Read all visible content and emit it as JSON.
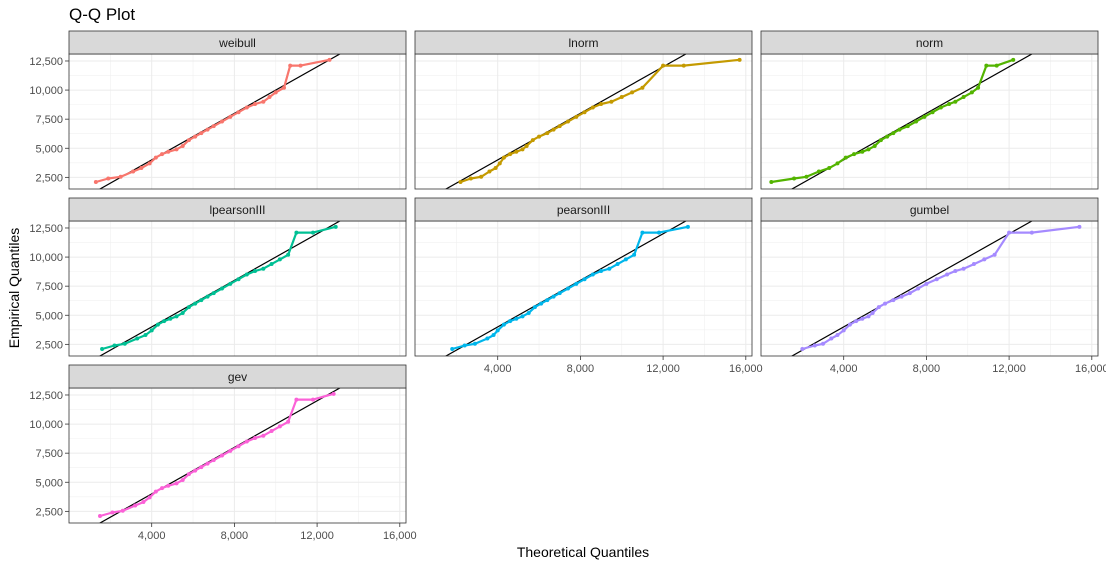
{
  "chart_data": {
    "type": "line",
    "title": "Q-Q Plot",
    "xlabel": "Theoretical Quantiles",
    "ylabel": "Empirical Quantiles",
    "xlim": [
      0,
      16300
    ],
    "ylim": [
      1500,
      13100
    ],
    "x_ticks": [
      4000,
      8000,
      12000,
      16000
    ],
    "x_tick_labels": [
      "4,000",
      "8,000",
      "12,000",
      "16,000"
    ],
    "y_ticks": [
      2500,
      5000,
      7500,
      10000,
      12500
    ],
    "y_tick_labels": [
      "2,500",
      "5,000",
      "7,500",
      "10,000",
      "12,500"
    ],
    "grid": true,
    "layout": "facet-grid 3x3",
    "reference_line": "y = x",
    "y_empirical": [
      2100,
      2400,
      2550,
      3000,
      3300,
      3700,
      4200,
      4500,
      4700,
      4900,
      5200,
      5700,
      6000,
      6300,
      6600,
      6900,
      7300,
      7700,
      8100,
      8500,
      8800,
      9000,
      9400,
      9800,
      10200,
      12100,
      12100,
      12600
    ],
    "series": [
      {
        "name": "weibull",
        "color": "#F8766D",
        "x": [
          1300,
          1900,
          2500,
          3100,
          3500,
          3900,
          4200,
          4500,
          4800,
          5200,
          5500,
          5800,
          6100,
          6400,
          6700,
          7000,
          7400,
          7800,
          8200,
          8600,
          9000,
          9400,
          9700,
          10000,
          10400,
          10700,
          11200,
          12600
        ]
      },
      {
        "name": "lnorm",
        "color": "#C49A00",
        "x": [
          2200,
          2700,
          3200,
          3600,
          3900,
          4100,
          4300,
          4600,
          4900,
          5200,
          5400,
          5700,
          6000,
          6400,
          6700,
          7000,
          7400,
          7800,
          8200,
          8600,
          9000,
          9500,
          10000,
          10500,
          11000,
          12000,
          13000,
          15700
        ]
      },
      {
        "name": "norm",
        "color": "#53B400",
        "x": [
          500,
          1600,
          2200,
          2800,
          3300,
          3700,
          4100,
          4500,
          4900,
          5200,
          5500,
          5800,
          6100,
          6400,
          6700,
          7100,
          7500,
          7900,
          8300,
          8700,
          9100,
          9400,
          9800,
          10200,
          10500,
          10900,
          11400,
          12200
        ]
      },
      {
        "name": "lpearsonIII",
        "color": "#00C094",
        "x": [
          1600,
          2200,
          2700,
          3300,
          3700,
          4000,
          4300,
          4600,
          4900,
          5200,
          5500,
          5800,
          6100,
          6400,
          6700,
          7000,
          7400,
          7800,
          8200,
          8600,
          9000,
          9400,
          9800,
          10200,
          10600,
          11000,
          11800,
          12900
        ]
      },
      {
        "name": "pearsonIII",
        "color": "#00B6EB",
        "x": [
          1800,
          2400,
          2900,
          3500,
          3800,
          4000,
          4300,
          4600,
          4900,
          5200,
          5500,
          5800,
          6100,
          6400,
          6700,
          7000,
          7400,
          7800,
          8200,
          8600,
          9000,
          9400,
          9800,
          10200,
          10600,
          11000,
          11800,
          13200
        ]
      },
      {
        "name": "gumbel",
        "color": "#A58AFF",
        "x": [
          2000,
          2600,
          3000,
          3400,
          3700,
          4000,
          4300,
          4600,
          4900,
          5200,
          5400,
          5700,
          6000,
          6400,
          6800,
          7200,
          7600,
          8000,
          8500,
          9000,
          9400,
          9800,
          10300,
          10800,
          11300,
          12000,
          13100,
          15400
        ]
      },
      {
        "name": "gev",
        "color": "#FB61D7",
        "x": [
          1500,
          2100,
          2600,
          3200,
          3600,
          3900,
          4200,
          4500,
          4800,
          5200,
          5500,
          5800,
          6100,
          6400,
          6700,
          7000,
          7400,
          7800,
          8200,
          8600,
          9000,
          9400,
          9800,
          10200,
          10600,
          11000,
          11800,
          12800
        ]
      }
    ]
  }
}
